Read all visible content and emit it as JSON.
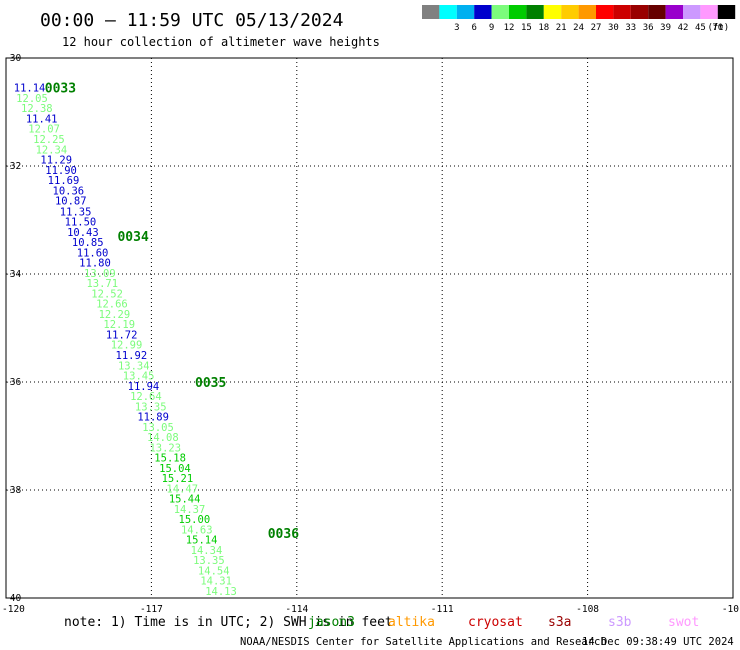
{
  "header": {
    "title": "00:00 – 11:59 UTC 05/13/2024",
    "subtitle": "12 hour collection of altimeter wave heights"
  },
  "legend": {
    "unit": "(ft)",
    "bins": [
      {
        "label": "",
        "color": "#808080"
      },
      {
        "label": "3",
        "color": "#00ffff"
      },
      {
        "label": "6",
        "color": "#00b0f0"
      },
      {
        "label": "9",
        "color": "#0000cd"
      },
      {
        "label": "12",
        "color": "#7cfc7c"
      },
      {
        "label": "15",
        "color": "#00cc00"
      },
      {
        "label": "18",
        "color": "#008000"
      },
      {
        "label": "21",
        "color": "#ffff00"
      },
      {
        "label": "24",
        "color": "#ffcc00"
      },
      {
        "label": "27",
        "color": "#ff9900"
      },
      {
        "label": "30",
        "color": "#ff0000"
      },
      {
        "label": "33",
        "color": "#cc0000"
      },
      {
        "label": "36",
        "color": "#990000"
      },
      {
        "label": "39",
        "color": "#660000"
      },
      {
        "label": "42",
        "color": "#9900cc"
      },
      {
        "label": "45",
        "color": "#cc99ff"
      },
      {
        "label": "70",
        "color": "#ff99ff"
      },
      {
        "label": "",
        "color": "#000000"
      }
    ]
  },
  "note": {
    "prefix": "note: 1) Time is in UTC; 2) SWH is in feet",
    "missions": [
      {
        "name": "jason3",
        "color": "#008000"
      },
      {
        "name": "altika",
        "color": "#ff9900"
      },
      {
        "name": "cryosat",
        "color": "#cc0000"
      },
      {
        "name": "s3a",
        "color": "#990000"
      },
      {
        "name": "s3b",
        "color": "#cc99ff"
      },
      {
        "name": "swot",
        "color": "#ff99ff"
      }
    ]
  },
  "footer": {
    "credit": "NOAA/NESDIS Center for Satellite Applications and Research",
    "timestamp": "14 Dec 09:38:49 UTC 2024"
  },
  "chart_data": {
    "type": "scatter",
    "title": "00:00 – 11:59 UTC 05/13/2024",
    "subtitle": "12 hour collection of altimeter wave heights",
    "xlabel": "",
    "ylabel": "",
    "xlim": [
      -120,
      -105
    ],
    "ylim": [
      -40,
      -30
    ],
    "x_ticks": [
      "-120",
      "-117",
      "-114",
      "-111",
      "-108",
      "-10"
    ],
    "y_ticks": [
      "-30",
      "-32",
      "-34",
      "-36",
      "-38",
      "-40"
    ],
    "grid": true,
    "pass_labels": [
      {
        "text": "0033",
        "x": -119.2,
        "y": -30.55
      },
      {
        "text": "0034",
        "x": -117.7,
        "y": -33.3
      },
      {
        "text": "0035",
        "x": -116.1,
        "y": -36.0
      },
      {
        "text": "0036",
        "x": -114.6,
        "y": -38.8
      }
    ],
    "points": [
      {
        "x": -119.84,
        "y": -30.55,
        "swh": "11.14"
      },
      {
        "x": -119.79,
        "y": -30.74,
        "swh": "12.05"
      },
      {
        "x": -119.69,
        "y": -30.93,
        "swh": "12.38"
      },
      {
        "x": -119.59,
        "y": -31.12,
        "swh": "11.41"
      },
      {
        "x": -119.54,
        "y": -31.31,
        "swh": "12.07"
      },
      {
        "x": -119.44,
        "y": -31.5,
        "swh": "12.25"
      },
      {
        "x": -119.39,
        "y": -31.69,
        "swh": "12.34"
      },
      {
        "x": -119.29,
        "y": -31.88,
        "swh": "11.29"
      },
      {
        "x": -119.19,
        "y": -32.07,
        "swh": "11.90"
      },
      {
        "x": -119.14,
        "y": -32.26,
        "swh": "11.69"
      },
      {
        "x": -119.04,
        "y": -32.45,
        "swh": "10.36"
      },
      {
        "x": -118.99,
        "y": -32.64,
        "swh": "10.87"
      },
      {
        "x": -118.89,
        "y": -32.84,
        "swh": "11.35"
      },
      {
        "x": -118.79,
        "y": -33.03,
        "swh": "11.50"
      },
      {
        "x": -118.74,
        "y": -33.22,
        "swh": "10.43"
      },
      {
        "x": -118.64,
        "y": -33.41,
        "swh": "10.85"
      },
      {
        "x": -118.54,
        "y": -33.6,
        "swh": "11.60"
      },
      {
        "x": -118.49,
        "y": -33.79,
        "swh": "11.80"
      },
      {
        "x": -118.39,
        "y": -33.98,
        "swh": "13.09"
      },
      {
        "x": -118.34,
        "y": -34.17,
        "swh": "13.71"
      },
      {
        "x": -118.24,
        "y": -34.36,
        "swh": "12.52"
      },
      {
        "x": -118.14,
        "y": -34.55,
        "swh": "12.66"
      },
      {
        "x": -118.09,
        "y": -34.74,
        "swh": "12.29"
      },
      {
        "x": -117.99,
        "y": -34.93,
        "swh": "12.19"
      },
      {
        "x": -117.94,
        "y": -35.12,
        "swh": "11.72"
      },
      {
        "x": -117.84,
        "y": -35.31,
        "swh": "12.99"
      },
      {
        "x": -117.74,
        "y": -35.5,
        "swh": "11.92"
      },
      {
        "x": -117.69,
        "y": -35.69,
        "swh": "13.34"
      },
      {
        "x": -117.59,
        "y": -35.88,
        "swh": "13.45"
      },
      {
        "x": -117.49,
        "y": -36.07,
        "swh": "11.94"
      },
      {
        "x": -117.44,
        "y": -36.26,
        "swh": "12.64"
      },
      {
        "x": -117.34,
        "y": -36.45,
        "swh": "13.35"
      },
      {
        "x": -117.29,
        "y": -36.64,
        "swh": "11.89"
      },
      {
        "x": -117.19,
        "y": -36.83,
        "swh": "13.05"
      },
      {
        "x": -117.09,
        "y": -37.02,
        "swh": "14.08"
      },
      {
        "x": -117.04,
        "y": -37.21,
        "swh": "13.23"
      },
      {
        "x": -116.94,
        "y": -37.4,
        "swh": "15.18"
      },
      {
        "x": -116.84,
        "y": -37.59,
        "swh": "15.04"
      },
      {
        "x": -116.79,
        "y": -37.78,
        "swh": "15.21"
      },
      {
        "x": -116.69,
        "y": -37.97,
        "swh": "14.47"
      },
      {
        "x": -116.64,
        "y": -38.16,
        "swh": "15.44"
      },
      {
        "x": -116.54,
        "y": -38.35,
        "swh": "14.37"
      },
      {
        "x": -116.44,
        "y": -38.54,
        "swh": "15.00"
      },
      {
        "x": -116.39,
        "y": -38.73,
        "swh": "14.63"
      },
      {
        "x": -116.29,
        "y": -38.92,
        "swh": "15.14"
      },
      {
        "x": -116.19,
        "y": -39.11,
        "swh": "14.34"
      },
      {
        "x": -116.14,
        "y": -39.3,
        "swh": "13.35"
      },
      {
        "x": -116.04,
        "y": -39.49,
        "swh": "14.54"
      },
      {
        "x": -115.99,
        "y": -39.68,
        "swh": "14.31"
      },
      {
        "x": -115.89,
        "y": -39.87,
        "swh": "14.13"
      }
    ]
  }
}
